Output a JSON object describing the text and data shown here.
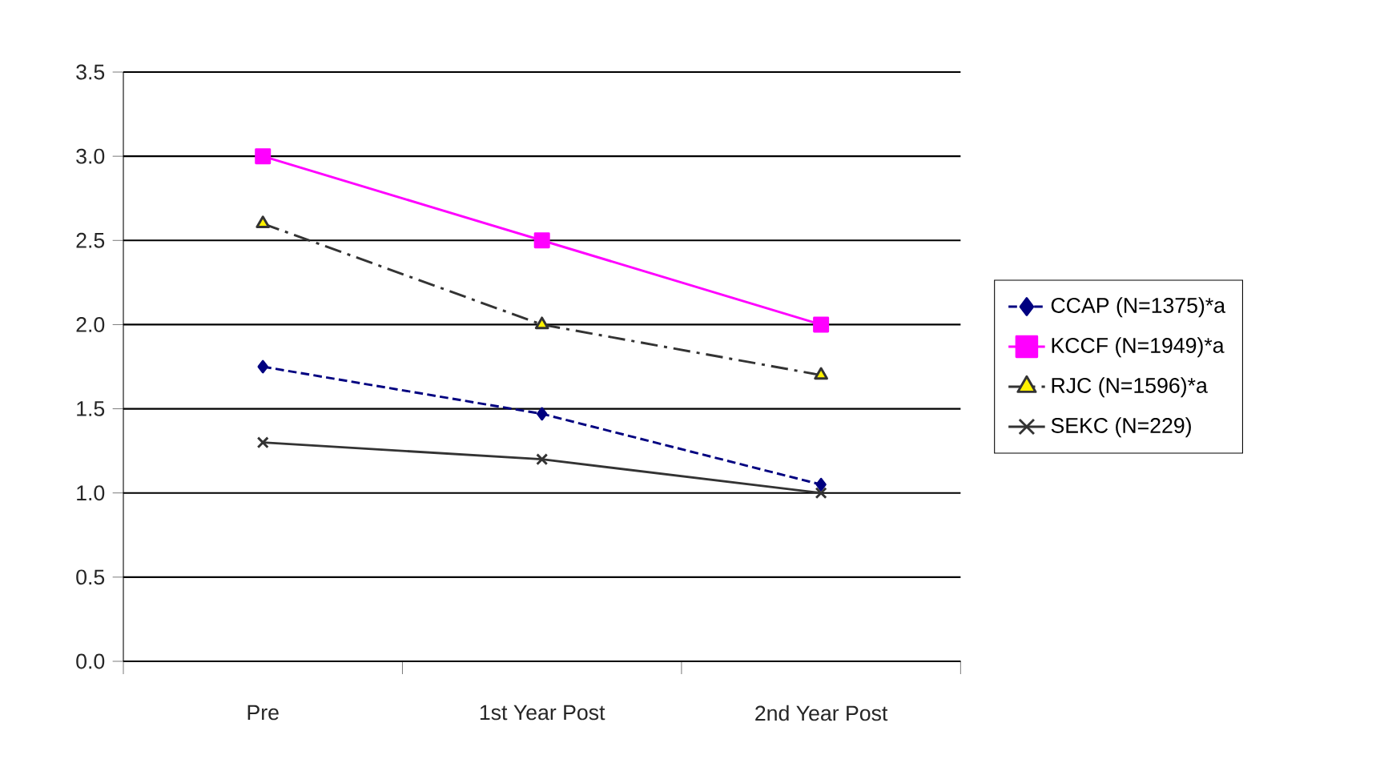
{
  "chart_data": {
    "type": "line",
    "categories": [
      "Pre",
      "1st Year Post",
      "2nd Year Post"
    ],
    "series": [
      {
        "name": "CCAP (N=1375)*a",
        "color": "#000080",
        "values": [
          1.75,
          1.47,
          1.05
        ],
        "marker": "diamond",
        "line_style": "dashed"
      },
      {
        "name": "KCCF (N=1949)*a",
        "color": "#ff00ff",
        "values": [
          3.0,
          2.5,
          2.0
        ],
        "marker": "square",
        "line_style": "solid"
      },
      {
        "name": "RJC (N=1596)*a",
        "color": "#333333",
        "values": [
          2.6,
          2.0,
          1.7
        ],
        "marker": "triangle",
        "line_style": "dashdot"
      },
      {
        "name": "SEKC (N=229)",
        "color": "#333333",
        "values": [
          1.3,
          1.2,
          1.0
        ],
        "marker": "cross",
        "line_style": "solid"
      }
    ],
    "ylim": [
      0,
      3.5
    ],
    "yticks": [
      {
        "value": 0,
        "label": "0.0"
      },
      {
        "value": 0.5,
        "label": "0.5"
      },
      {
        "value": 1,
        "label": "1.0"
      },
      {
        "value": 1.5,
        "label": "1.5"
      },
      {
        "value": 2,
        "label": "2.0"
      },
      {
        "value": 2.5,
        "label": "2.5"
      },
      {
        "value": 3,
        "label": "3.0"
      },
      {
        "value": 3.5,
        "label": "3.5"
      }
    ],
    "grid": "y",
    "legend": "right"
  }
}
